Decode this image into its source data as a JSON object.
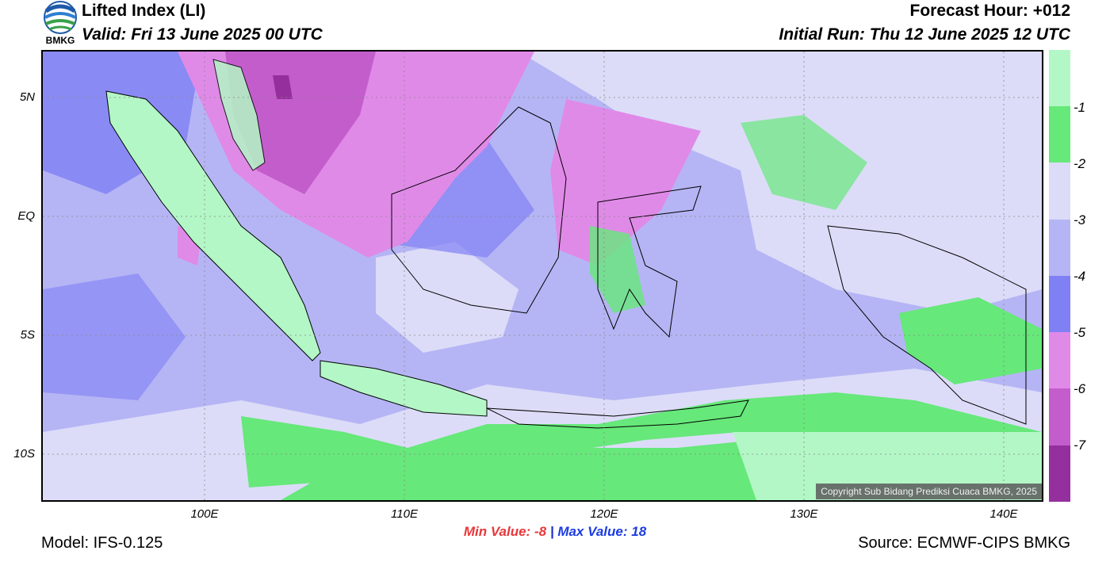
{
  "header": {
    "title": "Lifted Index (LI)",
    "valid": "Valid: Fri 13 June 2025 00 UTC",
    "forecast_hour": "Forecast Hour: +012",
    "initial_run": "Initial Run: Thu 12 June 2025 12 UTC",
    "logo_text": "BMKG"
  },
  "map": {
    "lat_labels": [
      "5N",
      "EQ",
      "5S",
      "10S"
    ],
    "lon_labels": [
      "100E",
      "110E",
      "120E",
      "130E",
      "140E"
    ],
    "copyright": "Copyright Sub Bidang Prediksi Cuaca BMKG, 2025"
  },
  "colorbar": {
    "labels": [
      "-1",
      "-2",
      "-3",
      "-4",
      "-5",
      "-6",
      "-7"
    ],
    "colors": [
      "#b3f7c6",
      "#66e87a",
      "#dcdcf8",
      "#b5b5f5",
      "#8080f5",
      "#e08ae8",
      "#c45dcc",
      "#962f9e"
    ]
  },
  "footer": {
    "min_label": "Min Value:",
    "min_value": "-8",
    "separator": "|",
    "max_label": "Max Value:",
    "max_value": "18",
    "model": "Model: IFS-0.125",
    "source": "Source: ECMWF-CIPS BMKG"
  }
}
